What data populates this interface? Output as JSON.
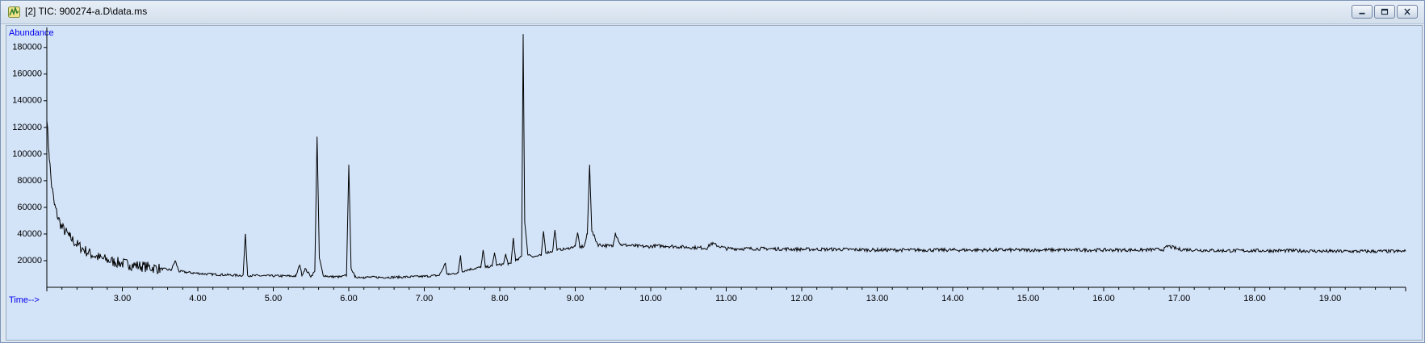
{
  "window": {
    "title": "[2] TIC: 900274-a.D\\data.ms",
    "icon": "chromatogram-icon",
    "buttons": [
      "minimize",
      "restore",
      "close"
    ]
  },
  "chart_data": {
    "type": "line",
    "ylabel": "Abundance",
    "xlabel": "Time-->",
    "xlim": [
      2.0,
      20.0
    ],
    "ylim": [
      0,
      195000
    ],
    "xticks": [
      "3.00",
      "4.00",
      "5.00",
      "6.00",
      "7.00",
      "8.00",
      "9.00",
      "10.00",
      "11.00",
      "12.00",
      "13.00",
      "14.00",
      "15.00",
      "16.00",
      "17.00",
      "18.00",
      "19.00"
    ],
    "yticks": [
      "20000",
      "40000",
      "60000",
      "80000",
      "100000",
      "120000",
      "140000",
      "160000",
      "180000"
    ],
    "line_color": "#000000",
    "background_color": "#d3e3f8",
    "grid": false,
    "series": [
      {
        "x": [
          2.0,
          2.03,
          2.06,
          2.1,
          2.15,
          2.2,
          2.3,
          2.4,
          2.55,
          2.7,
          2.9,
          3.1,
          3.3,
          3.5,
          3.65,
          3.7,
          3.75,
          3.9,
          4.1,
          4.3,
          4.5,
          4.6,
          4.63,
          4.66,
          4.7,
          4.9,
          5.1,
          5.3,
          5.35,
          5.38,
          5.42,
          5.5,
          5.55,
          5.58,
          5.61,
          5.66,
          5.75,
          5.9,
          5.97,
          6.0,
          6.03,
          6.08,
          6.2,
          6.4,
          6.6,
          6.8,
          7.0,
          7.2,
          7.28,
          7.3,
          7.32,
          7.45,
          7.48,
          7.5,
          7.6,
          7.75,
          7.78,
          7.81,
          7.9,
          7.93,
          7.96,
          8.05,
          8.08,
          8.11,
          8.15,
          8.18,
          8.21,
          8.25,
          8.29,
          8.31,
          8.33,
          8.37,
          8.45,
          8.55,
          8.58,
          8.61,
          8.7,
          8.73,
          8.76,
          8.9,
          9.0,
          9.03,
          9.06,
          9.12,
          9.16,
          9.19,
          9.22,
          9.3,
          9.45,
          9.5,
          9.53,
          9.6,
          9.8,
          9.95,
          10.05,
          10.2,
          10.5,
          10.75,
          10.8,
          11.0,
          11.5,
          12.0,
          12.5,
          13.0,
          13.5,
          14.0,
          14.5,
          15.0,
          15.5,
          16.0,
          16.5,
          16.8,
          16.85,
          17.0,
          17.5,
          18.0,
          18.5,
          19.0,
          19.5,
          20.0
        ],
        "y": [
          125000,
          100000,
          78000,
          62000,
          52000,
          45000,
          38000,
          32000,
          26000,
          22000,
          19000,
          17000,
          15500,
          14000,
          13000,
          20000,
          12000,
          11000,
          10000,
          9500,
          9000,
          9000,
          40000,
          9000,
          8800,
          8600,
          8500,
          8400,
          17000,
          9000,
          14000,
          8200,
          12000,
          113000,
          22000,
          9000,
          8000,
          7800,
          9000,
          92000,
          15000,
          7800,
          7600,
          7500,
          7600,
          7800,
          8200,
          9000,
          18000,
          10000,
          9500,
          11000,
          24000,
          12000,
          13500,
          15000,
          28000,
          15000,
          16000,
          26000,
          16500,
          17500,
          25000,
          17000,
          18500,
          37000,
          20000,
          21000,
          24000,
          190000,
          50000,
          25000,
          23000,
          24000,
          42000,
          26000,
          27000,
          43000,
          28000,
          29000,
          31000,
          41000,
          30000,
          31000,
          40000,
          92000,
          42000,
          32000,
          31000,
          31000,
          41000,
          32000,
          31000,
          30500,
          31000,
          31000,
          30000,
          29500,
          33000,
          29000,
          29000,
          28500,
          28500,
          28000,
          28000,
          28000,
          28000,
          28000,
          28000,
          28000,
          28000,
          28500,
          31000,
          28500,
          27500,
          27500,
          27500,
          27000,
          27000,
          27000
        ]
      }
    ]
  }
}
